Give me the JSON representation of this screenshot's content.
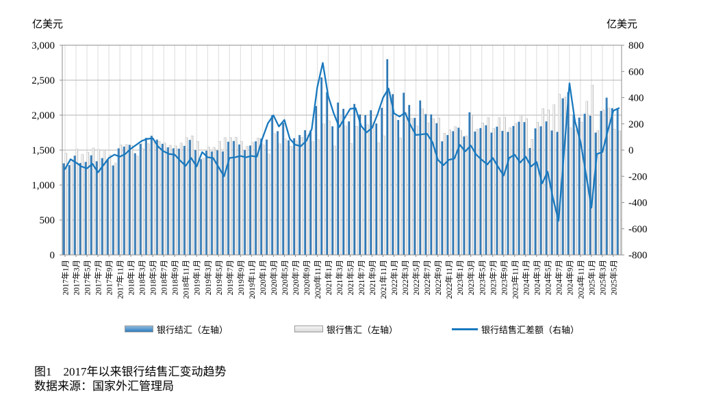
{
  "axis_units": {
    "left": "亿美元",
    "right": "亿美元"
  },
  "legend": [
    {
      "label": "银行结汇（左轴）",
      "type": "bar",
      "color": "#2e7fbf",
      "color_light": "#8db9de"
    },
    {
      "label": "银行售汇（左轴）",
      "type": "bar",
      "color": "#d9d9d9",
      "color_light": "#f5f5f5"
    },
    {
      "label": "银行结售汇差额（右轴）",
      "type": "line",
      "color": "#1878be"
    }
  ],
  "caption": {
    "title": "图1　2017年以来银行结售汇变动趋势",
    "source": "数据来源：国家外汇管理局"
  },
  "chart_data": {
    "type": "bar",
    "title": "图1 2017年以来银行结售汇变动趋势",
    "x_tick_step": 2,
    "left_axis": {
      "min": 0,
      "max": 3000,
      "step": 500,
      "unit": "亿美元"
    },
    "right_axis": {
      "min": -800,
      "max": 800,
      "step": 200,
      "unit": "亿美元"
    },
    "grid": {
      "horizontal": true,
      "vertical": true
    },
    "x": [
      "2017年1月",
      "2017年2月",
      "2017年3月",
      "2017年4月",
      "2017年5月",
      "2017年6月",
      "2017年7月",
      "2017年8月",
      "2017年9月",
      "2017年10月",
      "2017年11月",
      "2017年12月",
      "2018年1月",
      "2018年2月",
      "2018年3月",
      "2018年4月",
      "2018年5月",
      "2018年6月",
      "2018年7月",
      "2018年8月",
      "2018年9月",
      "2018年10月",
      "2018年11月",
      "2018年12月",
      "2019年1月",
      "2019年2月",
      "2019年3月",
      "2019年4月",
      "2019年5月",
      "2019年6月",
      "2019年7月",
      "2019年8月",
      "2019年9月",
      "2019年10月",
      "2019年11月",
      "2019年12月",
      "2020年1月",
      "2020年2月",
      "2020年3月",
      "2020年4月",
      "2020年5月",
      "2020年6月",
      "2020年7月",
      "2020年8月",
      "2020年9月",
      "2020年10月",
      "2020年11月",
      "2020年12月",
      "2021年1月",
      "2021年2月",
      "2021年3月",
      "2021年4月",
      "2021年5月",
      "2021年6月",
      "2021年7月",
      "2021年8月",
      "2021年9月",
      "2021年10月",
      "2021年11月",
      "2021年12月",
      "2022年1月",
      "2022年2月",
      "2022年3月",
      "2022年4月",
      "2022年5月",
      "2022年6月",
      "2022年7月",
      "2022年8月",
      "2022年9月",
      "2022年10月",
      "2022年11月",
      "2022年12月",
      "2023年1月",
      "2023年2月",
      "2023年3月",
      "2023年4月",
      "2023年5月",
      "2023年6月",
      "2023年7月",
      "2023年8月",
      "2023年9月",
      "2023年10月",
      "2023年11月",
      "2023年12月",
      "2024年1月",
      "2024年2月",
      "2024年3月",
      "2024年4月",
      "2024年5月",
      "2024年6月",
      "2024年7月",
      "2024年8月",
      "2024年9月",
      "2024年10月",
      "2024年11月",
      "2024年12月",
      "2025年1月",
      "2025年2月",
      "2025年3月",
      "2025年4月",
      "2025年5月",
      "2025年6月"
    ],
    "series": [
      {
        "name": "银行结汇（左轴）",
        "type": "bar",
        "axis": "left",
        "color": "#2e7fbf",
        "values": [
          1310,
          1285,
          1420,
          1315,
          1330,
          1425,
          1340,
          1385,
          1370,
          1280,
          1525,
          1550,
          1575,
          1455,
          1590,
          1675,
          1705,
          1650,
          1590,
          1540,
          1525,
          1520,
          1560,
          1645,
          1500,
          1370,
          1490,
          1480,
          1495,
          1480,
          1620,
          1630,
          1580,
          1500,
          1565,
          1625,
          1665,
          1650,
          2000,
          1770,
          1890,
          1640,
          1670,
          1715,
          1785,
          1780,
          2130,
          2540,
          2330,
          1840,
          2180,
          2090,
          1910,
          2160,
          2010,
          2000,
          2070,
          1880,
          2105,
          2800,
          2300,
          1930,
          2320,
          2145,
          1960,
          2210,
          2015,
          2010,
          1885,
          1625,
          1715,
          1770,
          1820,
          1695,
          2040,
          1765,
          1815,
          1855,
          1750,
          1835,
          1775,
          1760,
          1845,
          1905,
          1900,
          1530,
          1810,
          1840,
          1910,
          1780,
          1760,
          2240,
          2330,
          2010,
          1965,
          2020,
          1990,
          1750,
          2060,
          2250,
          2100,
          2095
        ]
      },
      {
        "name": "银行售汇（左轴）",
        "type": "bar",
        "axis": "left",
        "color": "#d9d9d9",
        "values": [
          1455,
          1355,
          1515,
          1440,
          1470,
          1530,
          1510,
          1500,
          1430,
          1315,
          1575,
          1580,
          1565,
          1415,
          1520,
          1590,
          1615,
          1625,
          1600,
          1570,
          1560,
          1600,
          1680,
          1705,
          1625,
          1385,
          1545,
          1540,
          1625,
          1680,
          1680,
          1685,
          1625,
          1555,
          1610,
          1675,
          1575,
          1445,
          1735,
          1590,
          1660,
          1555,
          1630,
          1685,
          1715,
          1620,
          1650,
          1875,
          1920,
          1560,
          2005,
          1845,
          1595,
          1840,
          1825,
          1865,
          1900,
          1605,
          1705,
          2330,
          2020,
          1675,
          2035,
          1955,
          1845,
          2090,
          1890,
          1950,
          1960,
          1740,
          1790,
          1835,
          1780,
          1705,
          2005,
          1800,
          1890,
          1965,
          1810,
          1965,
          1970,
          1820,
          1880,
          2000,
          1950,
          1655,
          1900,
          2095,
          2075,
          2150,
          2300,
          2260,
          1820,
          1790,
          1900,
          2200,
          2430,
          1780,
          2075,
          2100,
          1800,
          1775
        ]
      },
      {
        "name": "银行结售汇差额（右轴）",
        "type": "line",
        "axis": "right",
        "color": "#1878be",
        "values": [
          -145,
          -70,
          -95,
          -125,
          -140,
          -105,
          -170,
          -115,
          -60,
          -35,
          -50,
          -30,
          10,
          40,
          70,
          85,
          90,
          25,
          -10,
          -30,
          -35,
          -80,
          -120,
          -60,
          -125,
          -15,
          -55,
          -60,
          -130,
          -200,
          -60,
          -55,
          -45,
          -55,
          -45,
          -50,
          90,
          205,
          265,
          180,
          230,
          85,
          40,
          30,
          70,
          160,
          480,
          665,
          410,
          280,
          175,
          245,
          315,
          320,
          185,
          135,
          170,
          275,
          400,
          470,
          280,
          255,
          285,
          190,
          115,
          120,
          125,
          60,
          -75,
          -115,
          -75,
          -65,
          40,
          -10,
          35,
          -35,
          -75,
          -110,
          -60,
          -130,
          -195,
          -60,
          -35,
          -95,
          -50,
          -125,
          -90,
          -255,
          -165,
          -370,
          -540,
          -20,
          510,
          220,
          65,
          -180,
          -440,
          -30,
          -15,
          150,
          300,
          320
        ]
      }
    ]
  }
}
